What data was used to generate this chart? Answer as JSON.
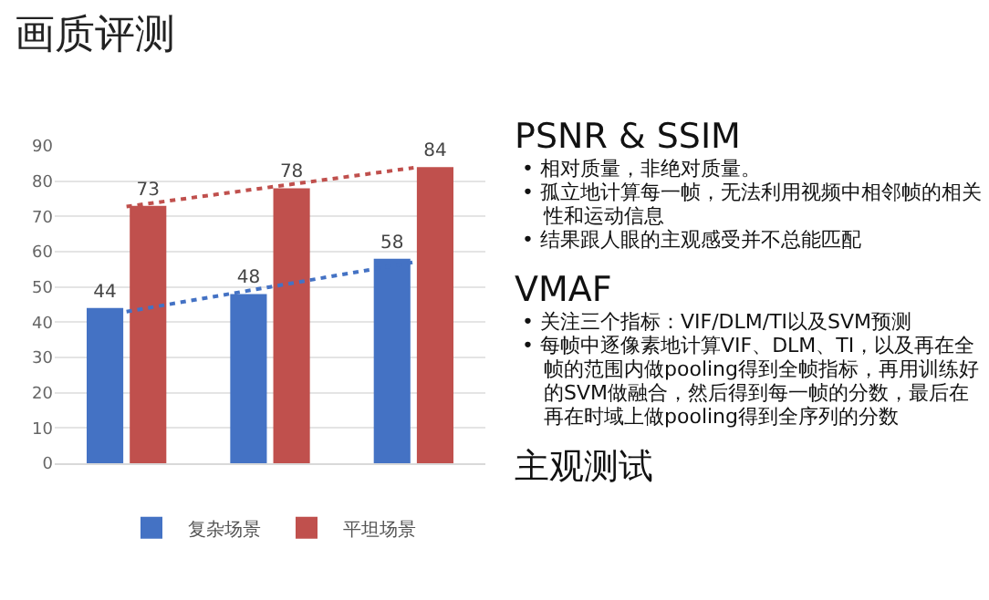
{
  "chart_data": {
    "type": "bar",
    "title": "画质评测",
    "categories": [
      null,
      null,
      null
    ],
    "series": [
      {
        "name": "复杂场景",
        "color": "#4472c4",
        "values": [
          44,
          48,
          58
        ],
        "value_labels": [
          "44",
          "48",
          "58"
        ]
      },
      {
        "name": "平坦场景",
        "color": "#c0504d",
        "values": [
          73,
          78,
          84
        ],
        "value_labels": [
          "73",
          "78",
          "84"
        ]
      },
      {
        "type": "line",
        "color": "#4472c4",
        "values": [
          43,
          50,
          57
        ],
        "line_style": "dotted"
      },
      {
        "type": "line",
        "color": "#c0504d",
        "values": [
          72.8,
          78.3,
          83.8
        ],
        "line_style": "dotted"
      }
    ],
    "ylim": [
      0,
      90
    ],
    "yticks": [
      0,
      10,
      20,
      30,
      40,
      50,
      60,
      70,
      80,
      90
    ],
    "grid": "y",
    "legend": "bottom",
    "tick_labels": "y",
    "annotations": [
      "PSNR & SSIM\n• 相对质量，非绝对质量。\n• 孤立地计算每一帧，无法利用视频中相邻帧的相关性和运动信息\n• 结果跟人眼的主观感受并不总能匹配",
      "VMAF\n• 关注三个指标：VIF/DLM/TI以及SVM预测\n• 每帧中逐像素地计算VIF、DLM、TI，以及再在全帧的范围内做pooling得到全帧指标，再用训练好的SVM做融合，然后得到每一帧的分数，最后在再在时域上做pooling得到全序列的分数",
      "主观测试"
    ]
  }
}
